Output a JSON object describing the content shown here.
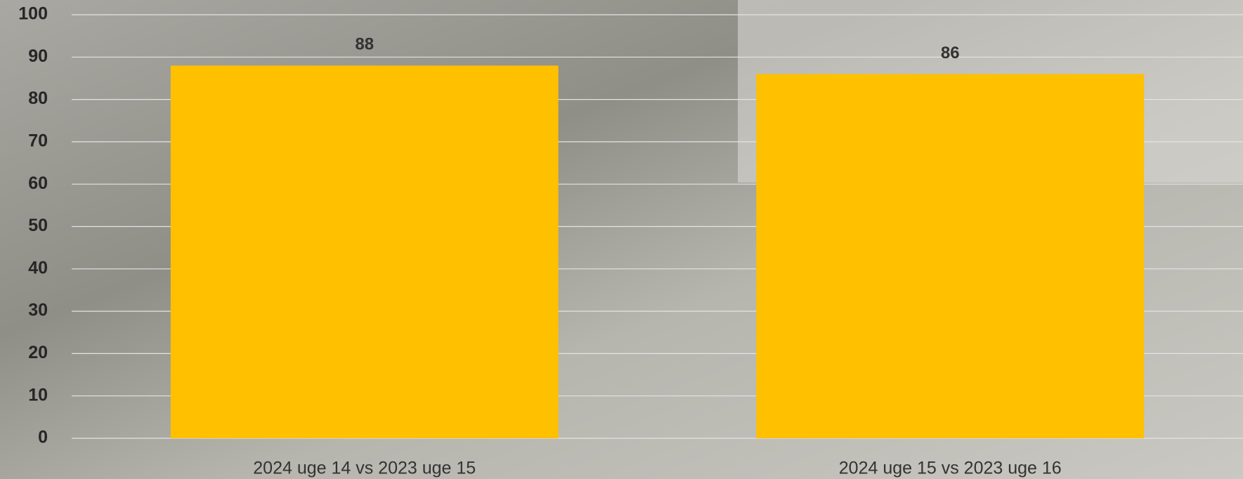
{
  "chart_data": {
    "type": "bar",
    "categories": [
      "2024 uge 14 vs 2023 uge 15",
      "2024 uge 15 vs 2023 uge 16"
    ],
    "values": [
      88,
      86
    ],
    "color": "#ffc000",
    "ylim": [
      0,
      100
    ],
    "yticks": [
      0,
      10,
      20,
      30,
      40,
      50,
      60,
      70,
      80,
      90,
      100
    ],
    "grid": true
  }
}
